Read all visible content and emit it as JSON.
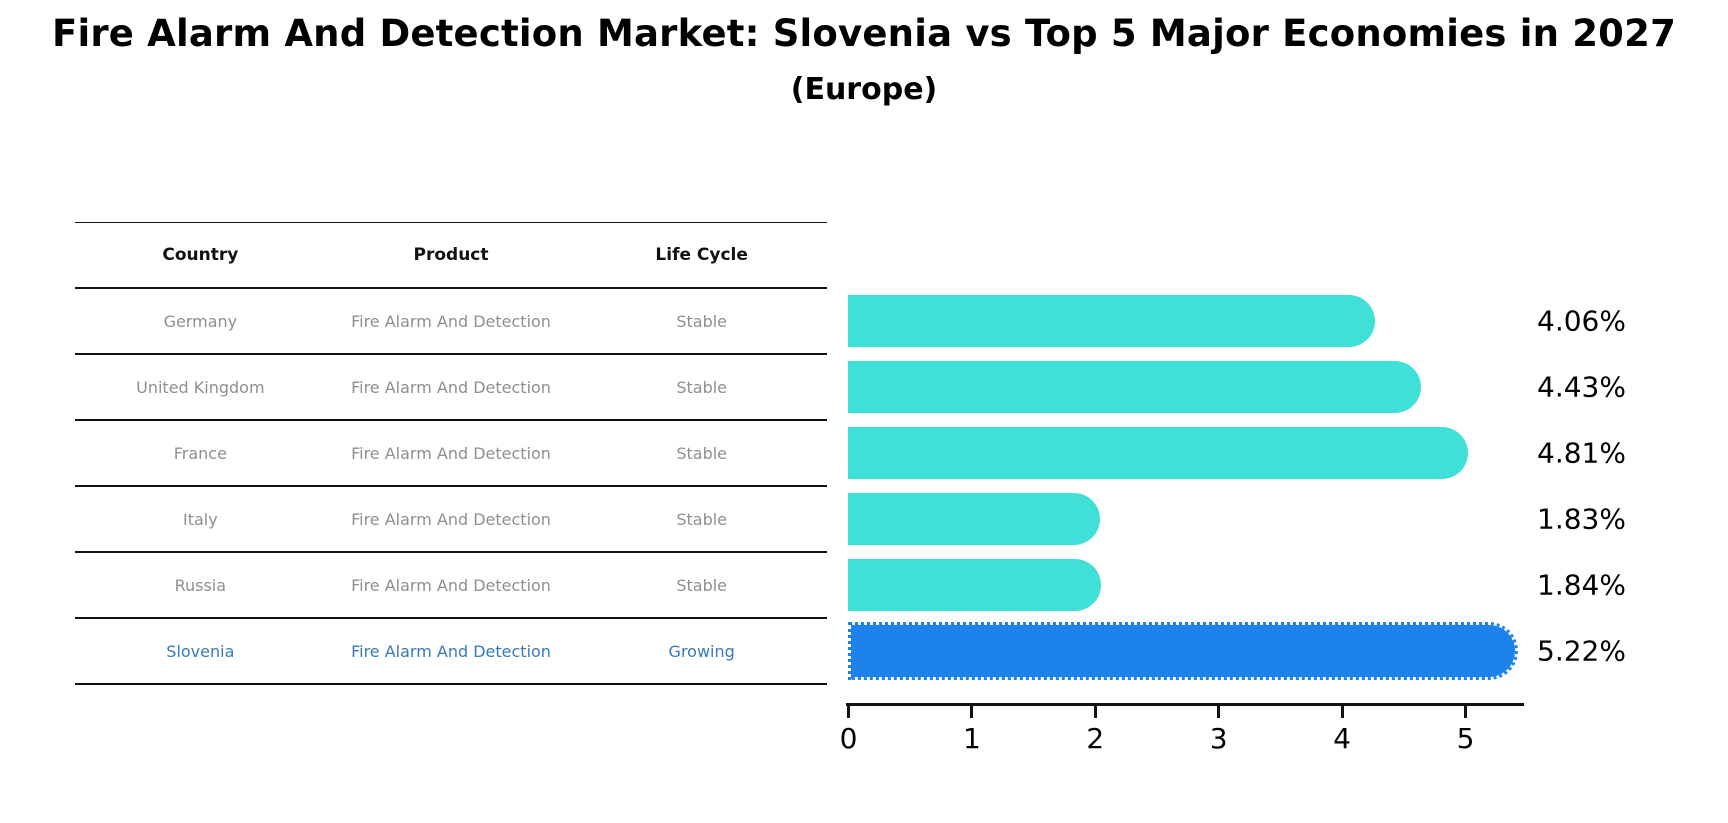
{
  "title": "Fire Alarm And Detection Market: Slovenia vs Top 5 Major Economies in 2027",
  "subtitle": "(Europe)",
  "table": {
    "headers": [
      "Country",
      "Product",
      "Life Cycle"
    ],
    "rows": [
      {
        "country": "Germany",
        "product": "Fire Alarm And Detection",
        "life_cycle": "Stable",
        "highlight": false
      },
      {
        "country": "United Kingdom",
        "product": "Fire Alarm And Detection",
        "life_cycle": "Stable",
        "highlight": false
      },
      {
        "country": "France",
        "product": "Fire Alarm And Detection",
        "life_cycle": "Stable",
        "highlight": false
      },
      {
        "country": "Italy",
        "product": "Fire Alarm And Detection",
        "life_cycle": "Stable",
        "highlight": false
      },
      {
        "country": "Russia",
        "product": "Fire Alarm And Detection",
        "life_cycle": "Stable",
        "highlight": false
      },
      {
        "country": "Slovenia",
        "product": "Fire Alarm And Detection",
        "life_cycle": "Growing",
        "highlight": true
      }
    ]
  },
  "chart_data": {
    "type": "bar",
    "orientation": "horizontal",
    "title": "Fire Alarm And Detection Market: Slovenia vs Top 5 Major Economies in 2027 (Europe)",
    "categories": [
      "Germany",
      "United Kingdom",
      "France",
      "Italy",
      "Russia",
      "Slovenia"
    ],
    "values": [
      4.06,
      4.43,
      4.81,
      1.83,
      1.84,
      5.22
    ],
    "value_labels": [
      "4.06%",
      "4.43%",
      "4.81%",
      "1.83%",
      "1.84%",
      "5.22%"
    ],
    "unit": "%",
    "highlight_index": 5,
    "xlim": [
      0,
      5.5
    ],
    "xticks": [
      0,
      1,
      2,
      3,
      4,
      5
    ],
    "xtick_labels": [
      "0",
      "1",
      "2",
      "3",
      "4",
      "5"
    ],
    "grid": false,
    "legend": false,
    "bar_color": "#40E0D8",
    "highlight_color": "#1E82EC",
    "highlight_border_style": "dotted"
  },
  "colors": {
    "background": "#FFFFFF",
    "title_text": "#000000",
    "table_header_text": "#111111",
    "table_row_text": "#8F8F8F",
    "highlight_text": "#3679BE",
    "table_line": "#111111",
    "axis_line": "#111111",
    "value_label_text": "#000000"
  }
}
